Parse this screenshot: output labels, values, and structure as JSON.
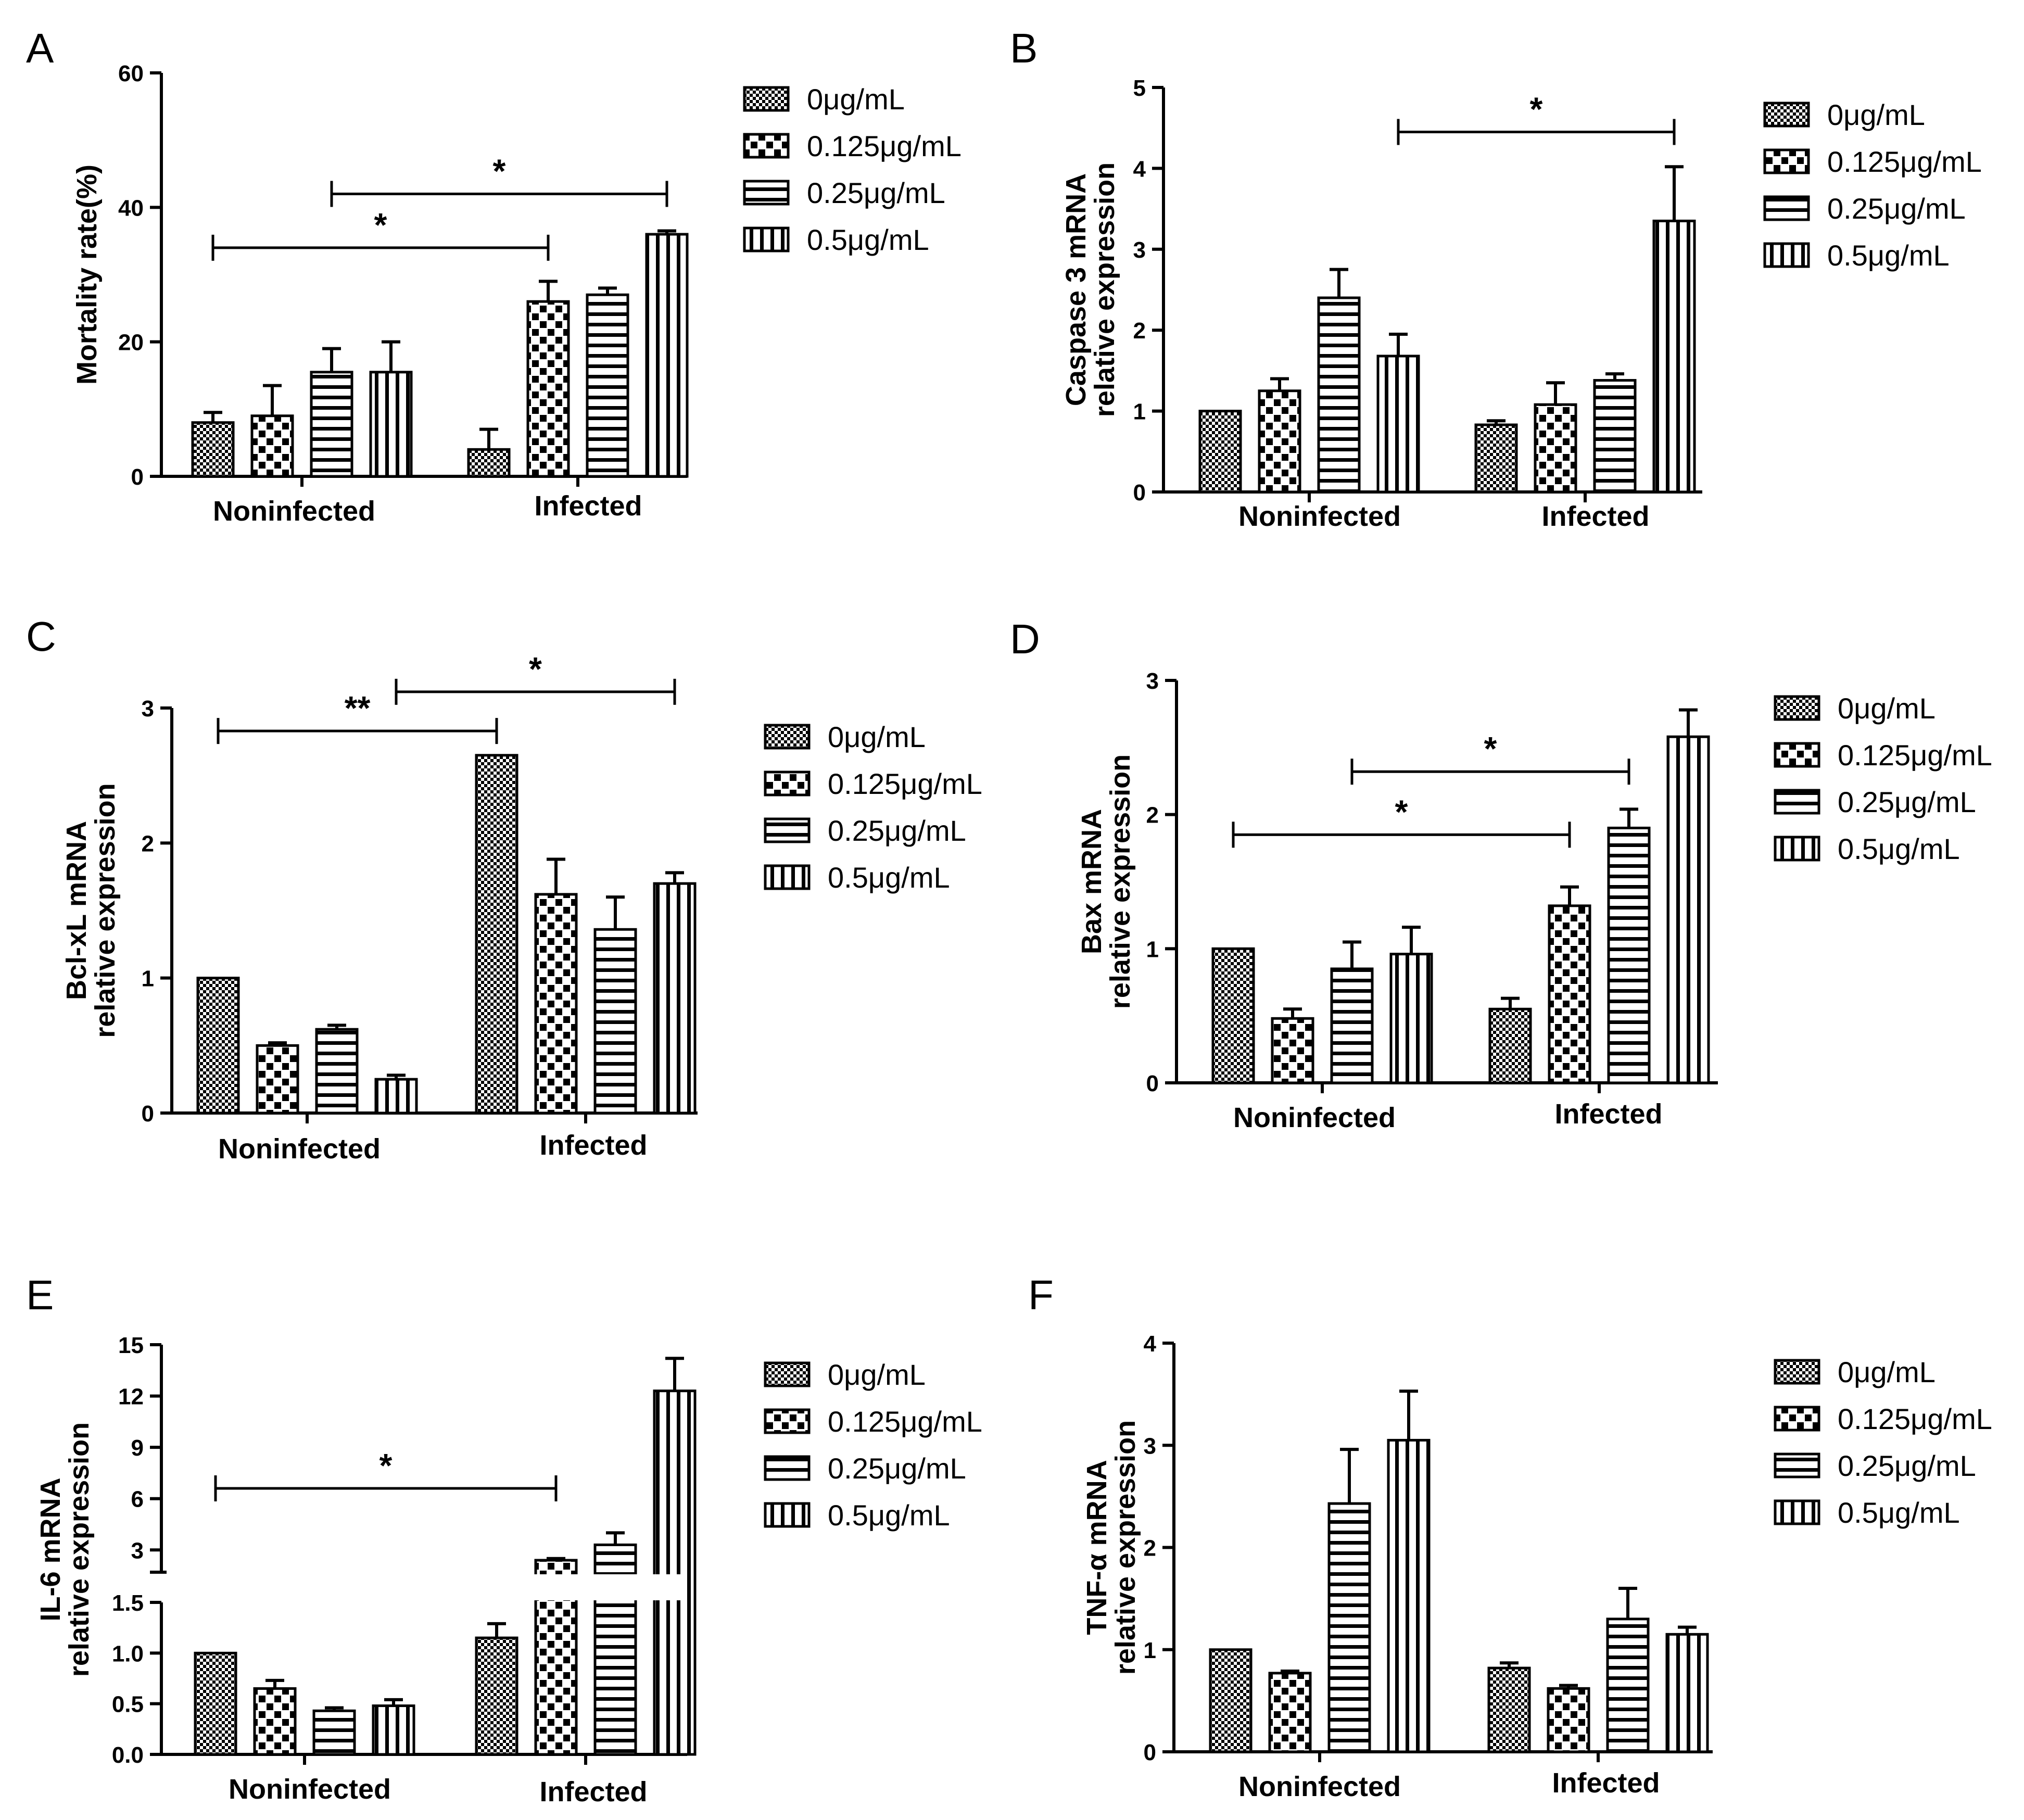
{
  "legend": [
    "0μg/mL",
    "0.125μg/mL",
    "0.25μg/mL",
    "0.5μg/mL"
  ],
  "chart_data": [
    {
      "panel": "A",
      "type": "bar",
      "ylabel": [
        "Mortality rate(%)"
      ],
      "categories": [
        "Noninfected",
        "Infected"
      ],
      "yticks": [
        0,
        20,
        40,
        60
      ],
      "ylim": [
        0,
        60
      ],
      "series": [
        {
          "name": "0μg/mL",
          "values": [
            8,
            4
          ],
          "errors": [
            1.5,
            3
          ]
        },
        {
          "name": "0.125μg/mL",
          "values": [
            9,
            26
          ],
          "errors": [
            4.5,
            3
          ]
        },
        {
          "name": "0.25μg/mL",
          "values": [
            15.5,
            27
          ],
          "errors": [
            3.5,
            1
          ]
        },
        {
          "name": "0.5μg/mL",
          "values": [
            15.5,
            36
          ],
          "errors": [
            4.5,
            0.5
          ]
        }
      ],
      "significance": [
        {
          "label": "*",
          "from": [
            0,
            0
          ],
          "to": [
            1,
            1
          ],
          "y": 34
        },
        {
          "label": "*",
          "from": [
            0,
            2
          ],
          "to": [
            1,
            3
          ],
          "y": 42
        }
      ]
    },
    {
      "panel": "B",
      "type": "bar",
      "ylabel": [
        "Caspase 3 mRNA",
        "relative expression"
      ],
      "categories": [
        "Noninfected",
        "Infected"
      ],
      "yticks": [
        0,
        1,
        2,
        3,
        4,
        5
      ],
      "ylim": [
        0,
        5
      ],
      "series": [
        {
          "name": "0μg/mL",
          "values": [
            1,
            0.83
          ],
          "errors": [
            0,
            0.05
          ]
        },
        {
          "name": "0.125μg/mL",
          "values": [
            1.25,
            1.08
          ],
          "errors": [
            0.15,
            0.27
          ]
        },
        {
          "name": "0.25μg/mL",
          "values": [
            2.4,
            1.38
          ],
          "errors": [
            0.35,
            0.08
          ]
        },
        {
          "name": "0.5μg/mL",
          "values": [
            1.68,
            3.35
          ],
          "errors": [
            0.27,
            0.67
          ]
        }
      ],
      "significance": [
        {
          "label": "*",
          "from": [
            0,
            3
          ],
          "to": [
            1,
            3
          ],
          "y": 4.45
        }
      ]
    },
    {
      "panel": "C",
      "type": "bar",
      "ylabel": [
        "Bcl-xL mRNA",
        "relative expression"
      ],
      "categories": [
        "Noninfected",
        "Infected"
      ],
      "yticks": [
        0,
        1,
        2,
        3
      ],
      "ylim": [
        0,
        3
      ],
      "series": [
        {
          "name": "0μg/mL",
          "values": [
            1,
            2.65
          ],
          "errors": [
            0,
            0
          ]
        },
        {
          "name": "0.125μg/mL",
          "values": [
            0.5,
            1.62
          ],
          "errors": [
            0.02,
            0.26
          ]
        },
        {
          "name": "0.25μg/mL",
          "values": [
            0.62,
            1.36
          ],
          "errors": [
            0.03,
            0.24
          ]
        },
        {
          "name": "0.5μg/mL",
          "values": [
            0.25,
            1.7
          ],
          "errors": [
            0.03,
            0.08
          ]
        }
      ],
      "significance": [
        {
          "label": "**",
          "from": [
            0,
            0
          ],
          "to": [
            1,
            0
          ],
          "y": 2.83
        },
        {
          "label": "*",
          "from": [
            0,
            3
          ],
          "to": [
            1,
            3
          ],
          "y": 3.12
        }
      ]
    },
    {
      "panel": "D",
      "type": "bar",
      "ylabel": [
        "Bax mRNA",
        "relative expression"
      ],
      "categories": [
        "Noninfected",
        "Infected"
      ],
      "yticks": [
        0,
        1,
        2,
        3
      ],
      "ylim": [
        0,
        3
      ],
      "series": [
        {
          "name": "0μg/mL",
          "values": [
            1,
            0.55
          ],
          "errors": [
            0,
            0.08
          ]
        },
        {
          "name": "0.125μg/mL",
          "values": [
            0.48,
            1.32
          ],
          "errors": [
            0.07,
            0.14
          ]
        },
        {
          "name": "0.25μg/mL",
          "values": [
            0.85,
            1.9
          ],
          "errors": [
            0.2,
            0.14
          ]
        },
        {
          "name": "0.5μg/mL",
          "values": [
            0.96,
            2.58
          ],
          "errors": [
            0.2,
            0.2
          ]
        }
      ],
      "significance": [
        {
          "label": "*",
          "from": [
            0,
            0
          ],
          "to": [
            1,
            1
          ],
          "y": 1.85
        },
        {
          "label": "*",
          "from": [
            0,
            2
          ],
          "to": [
            1,
            2
          ],
          "y": 2.32
        }
      ]
    },
    {
      "panel": "E",
      "type": "bar",
      "ylabel": [
        "IL-6 mRNA",
        "relative expression"
      ],
      "categories": [
        "Noninfected",
        "Infected"
      ],
      "broken_axis": true,
      "yticks_lower": [
        "0.0",
        "0.5",
        "1.0",
        "1.5"
      ],
      "yticks_upper": [
        "3",
        "6",
        "9",
        "12",
        "15"
      ],
      "ylim_lower": [
        0,
        1.5
      ],
      "ylim_upper": [
        1.7,
        15
      ],
      "series": [
        {
          "name": "0μg/mL",
          "values": [
            1,
            1.15
          ],
          "errors": [
            0,
            0.14
          ]
        },
        {
          "name": "0.125μg/mL",
          "values": [
            0.65,
            2.4
          ],
          "errors": [
            0.08,
            0.1
          ]
        },
        {
          "name": "0.25μg/mL",
          "values": [
            0.43,
            3.3
          ],
          "errors": [
            0.03,
            0.7
          ]
        },
        {
          "name": "0.5μg/mL",
          "values": [
            0.48,
            12.3
          ],
          "errors": [
            0.06,
            1.9
          ]
        }
      ],
      "significance": [
        {
          "label": "*",
          "from": [
            0,
            0
          ],
          "to": [
            1,
            1
          ],
          "y": 6.6
        }
      ]
    },
    {
      "panel": "F",
      "type": "bar",
      "ylabel": [
        "TNF-α mRNA",
        "relative expression"
      ],
      "categories": [
        "Noninfected",
        "Infected"
      ],
      "yticks": [
        0,
        1,
        2,
        3,
        4
      ],
      "ylim": [
        0,
        4
      ],
      "series": [
        {
          "name": "0μg/mL",
          "values": [
            1,
            0.82
          ],
          "errors": [
            0,
            0.05
          ]
        },
        {
          "name": "0.125μg/mL",
          "values": [
            0.77,
            0.62
          ],
          "errors": [
            0.02,
            0.03
          ]
        },
        {
          "name": "0.25μg/mL",
          "values": [
            2.43,
            1.3
          ],
          "errors": [
            0.53,
            0.3
          ]
        },
        {
          "name": "0.5μg/mL",
          "values": [
            3.05,
            1.15
          ],
          "errors": [
            0.48,
            0.07
          ]
        }
      ],
      "significance": []
    }
  ]
}
